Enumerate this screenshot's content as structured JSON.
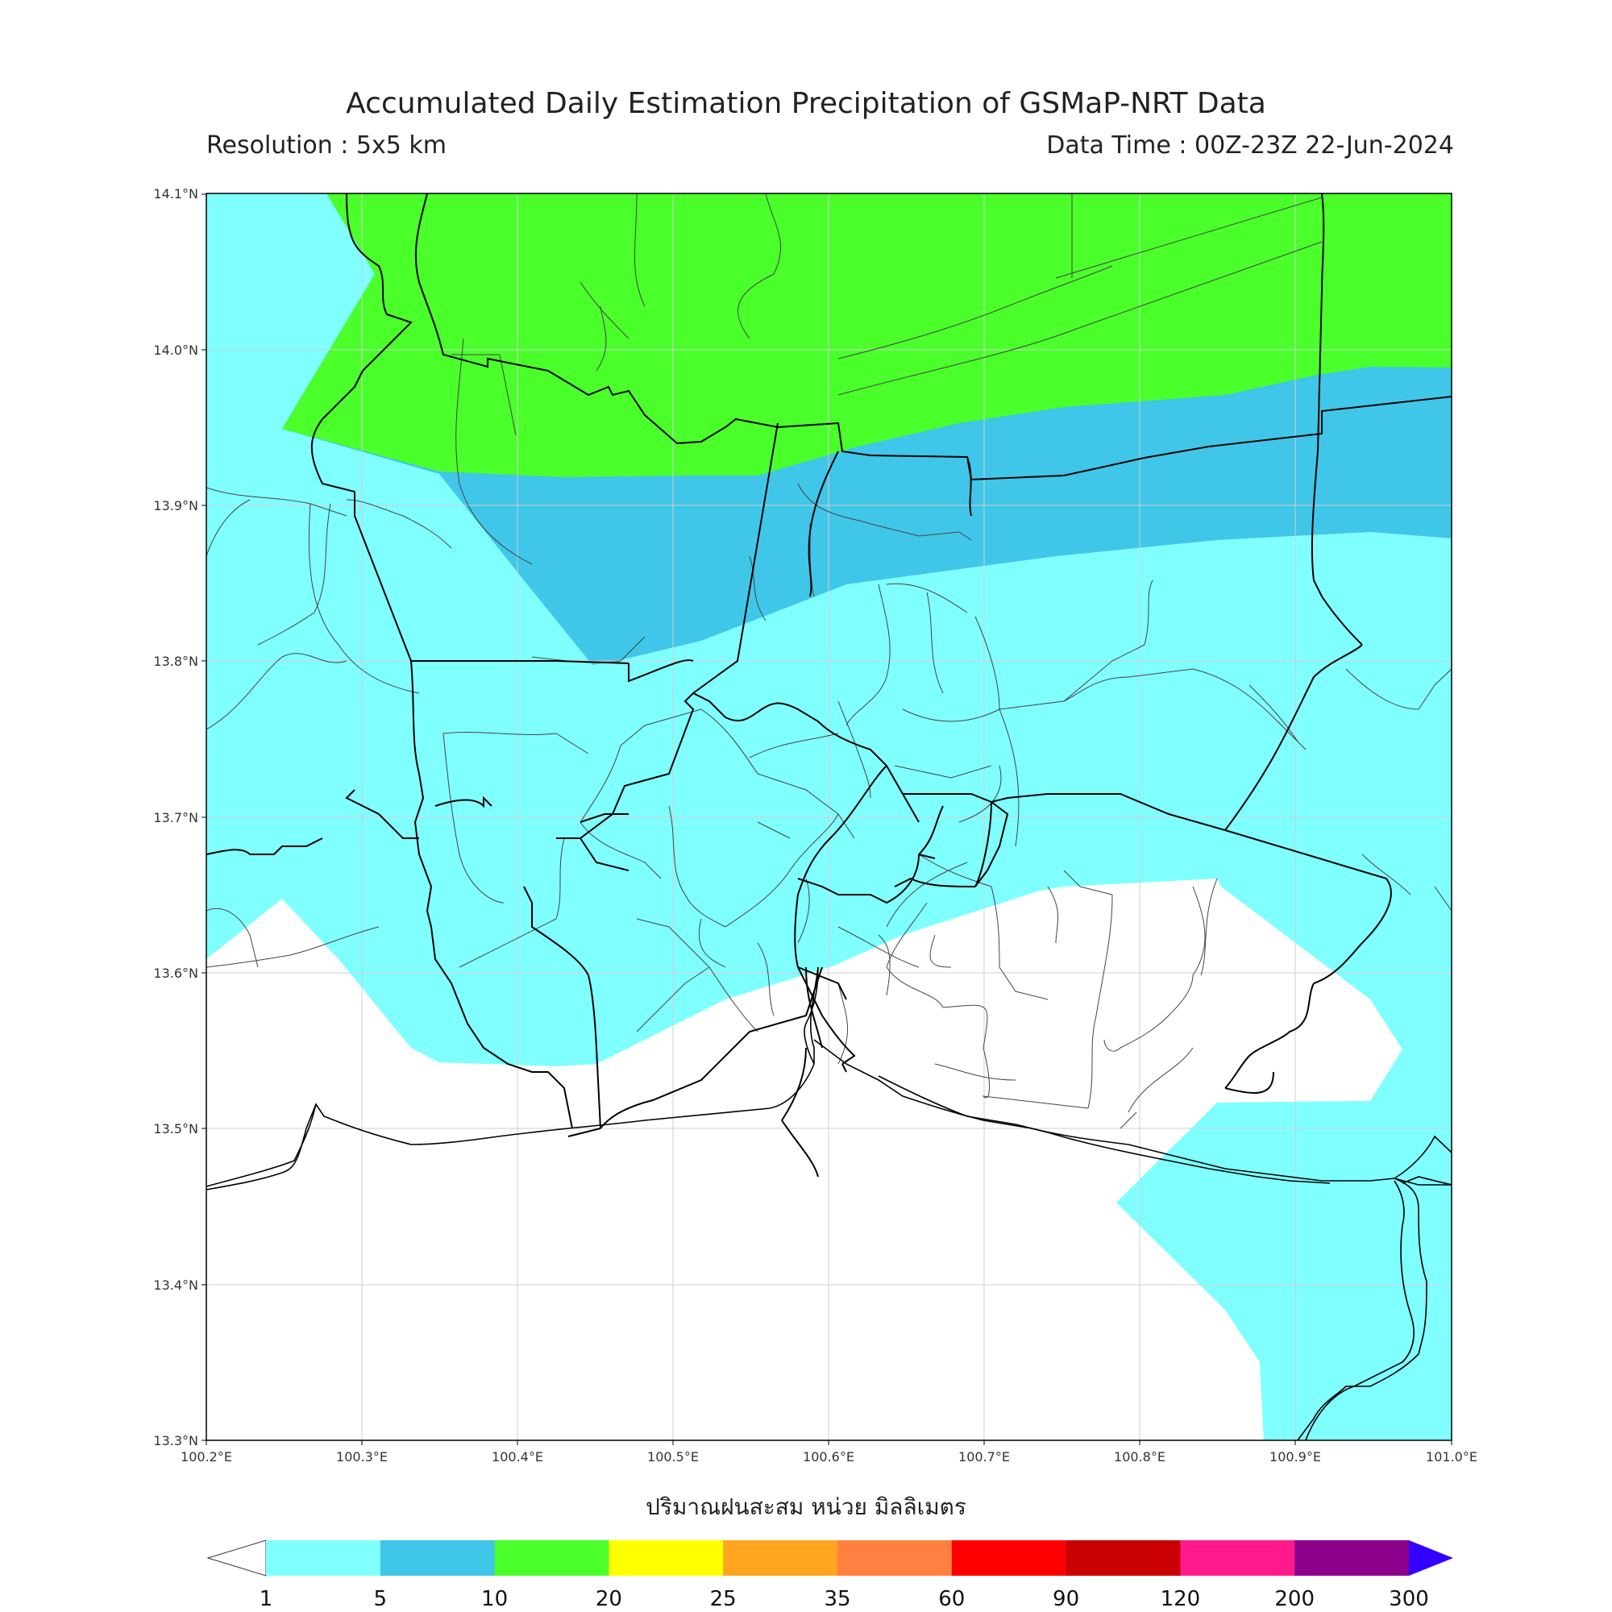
{
  "header": {
    "title": "Accumulated Daily Estimation Precipitation of GSMaP-NRT Data",
    "resolution": "Resolution : 5x5 km",
    "data_time": "Data Time : 00Z-23Z 22-Jun-2024"
  },
  "axes": {
    "lat_ticks": [
      "14.1°N",
      "14.0°N",
      "13.9°N",
      "13.8°N",
      "13.7°N",
      "13.6°N",
      "13.5°N",
      "13.4°N",
      "13.3°N"
    ],
    "lon_ticks": [
      "100.2°E",
      "100.3°E",
      "100.4°E",
      "100.5°E",
      "100.6°E",
      "100.7°E",
      "100.8°E",
      "100.9°E",
      "101.0°E"
    ]
  },
  "colorbar": {
    "title": "ปริมาณฝนสะสม หน่วย มิลลิเมตร",
    "levels": [
      "1",
      "5",
      "10",
      "20",
      "25",
      "35",
      "60",
      "90",
      "120",
      "200",
      "300"
    ],
    "colors": [
      "#80ffff",
      "#40c6e8",
      "#4aff2a",
      "#ffff00",
      "#ffa520",
      "#ff8040",
      "#ff0000",
      "#c80000",
      "#ff1a8c",
      "#8c008c"
    ],
    "under_color": "#ffffff",
    "over_color": "#3300ff"
  },
  "legend_colors": {
    "1-5": "#80ffff",
    "5-10": "#40c6e8",
    "10-20": "#4aff2a"
  }
}
